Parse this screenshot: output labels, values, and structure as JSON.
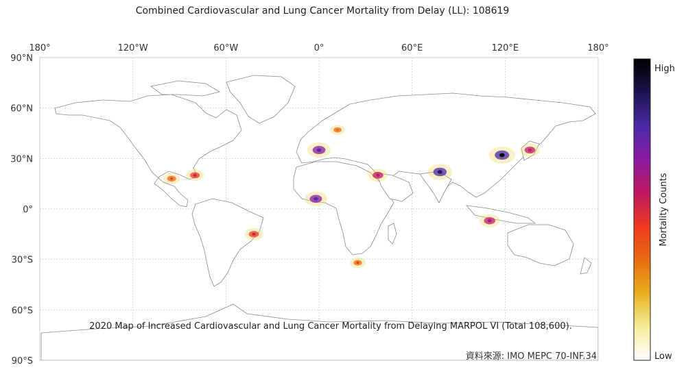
{
  "title": "Combined Cardiovascular and Lung Cancer Mortality from Delay (LL): 108619",
  "caption": "2020 Map of Increased Cardiovascular and Lung Cancer Mortality from Delaying MARPOL VI (Total 108,600).",
  "source": "資料來源: IMO MEPC 70-INF.34",
  "lon_ticks": [
    {
      "value": -180,
      "label": "180°"
    },
    {
      "value": -120,
      "label": "120°W"
    },
    {
      "value": -60,
      "label": "60°W"
    },
    {
      "value": 0,
      "label": "0°"
    },
    {
      "value": 60,
      "label": "60°E"
    },
    {
      "value": 120,
      "label": "120°E"
    },
    {
      "value": 180,
      "label": "180°"
    }
  ],
  "lat_ticks": [
    {
      "value": 90,
      "label": "90°N"
    },
    {
      "value": 60,
      "label": "60°N"
    },
    {
      "value": 30,
      "label": "30°N"
    },
    {
      "value": 0,
      "label": "0°"
    },
    {
      "value": -30,
      "label": "30°S"
    },
    {
      "value": -60,
      "label": "60°S"
    },
    {
      "value": -90,
      "label": "90°S"
    }
  ],
  "colorbar": {
    "label": "Mortality Counts",
    "high": "High",
    "low": "Low",
    "colors": [
      "#ffffff",
      "#f4ec9a",
      "#e8b020",
      "#e86a10",
      "#ee3a20",
      "#c01860",
      "#8a1aa0",
      "#4a2aa8",
      "#1a1450",
      "#000000"
    ]
  },
  "map": {
    "grid": true,
    "coastline_color": "#808080",
    "hotspots": [
      {
        "region": "China east coast",
        "lon": 118,
        "lat": 32,
        "level": 0.95
      },
      {
        "region": "India",
        "lon": 78,
        "lat": 22,
        "level": 0.85
      },
      {
        "region": "North Africa coast",
        "lon": 0,
        "lat": 35,
        "level": 0.8
      },
      {
        "region": "Gulf of Guinea",
        "lon": -2,
        "lat": 6,
        "level": 0.75
      },
      {
        "region": "Red Sea",
        "lon": 38,
        "lat": 20,
        "level": 0.6
      },
      {
        "region": "Japan",
        "lon": 136,
        "lat": 35,
        "level": 0.6
      },
      {
        "region": "Indonesia",
        "lon": 110,
        "lat": -7,
        "level": 0.65
      },
      {
        "region": "Brazil coast",
        "lon": -42,
        "lat": -15,
        "level": 0.55
      },
      {
        "region": "Gulf coast / Caribbean",
        "lon": -80,
        "lat": 20,
        "level": 0.5
      },
      {
        "region": "Europe",
        "lon": 12,
        "lat": 47,
        "level": 0.35
      },
      {
        "region": "Mexico / Central America",
        "lon": -95,
        "lat": 18,
        "level": 0.45
      },
      {
        "region": "South Africa",
        "lon": 25,
        "lat": -32,
        "level": 0.4
      }
    ]
  }
}
